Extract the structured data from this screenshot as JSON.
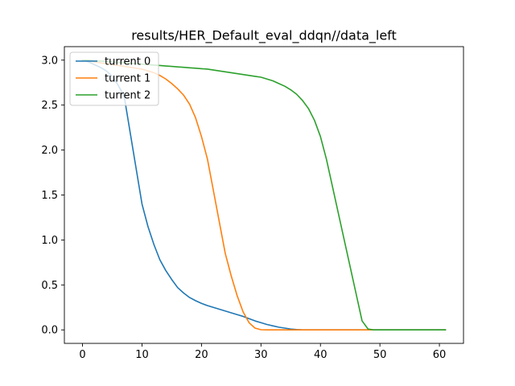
{
  "chart_data": {
    "type": "line",
    "title": "results/HER_Default_eval_ddqn//data_left",
    "xlim": [
      -3.05,
      64.05
    ],
    "ylim": [
      -0.15,
      3.15
    ],
    "x_ticks": [
      0,
      10,
      20,
      30,
      40,
      50,
      60
    ],
    "y_ticks": [
      0.0,
      0.5,
      1.0,
      1.5,
      2.0,
      2.5,
      3.0
    ],
    "y_tick_labels": [
      "0.0",
      "0.5",
      "1.0",
      "1.5",
      "2.0",
      "2.5",
      "3.0"
    ],
    "grid": false,
    "legend_position": "upper left",
    "series": [
      {
        "name": "turrent 0",
        "color": "#1f77b4",
        "x": [
          0,
          1,
          2,
          3,
          4,
          5,
          6,
          7,
          8,
          9,
          10,
          11,
          12,
          13,
          14,
          15,
          16,
          17,
          18,
          19,
          20,
          21,
          22,
          23,
          24,
          25,
          26,
          27,
          28,
          29,
          30,
          31,
          32,
          33,
          34,
          35,
          36,
          37,
          38,
          39,
          40,
          41,
          42,
          43,
          44,
          45,
          46,
          47,
          48,
          49,
          50,
          51,
          52,
          53,
          54,
          55,
          56,
          57,
          58,
          59,
          60,
          61
        ],
        "y": [
          3.0,
          2.98,
          2.95,
          2.92,
          2.88,
          2.82,
          2.72,
          2.6,
          2.2,
          1.8,
          1.4,
          1.15,
          0.95,
          0.78,
          0.66,
          0.56,
          0.47,
          0.41,
          0.36,
          0.325,
          0.295,
          0.27,
          0.25,
          0.23,
          0.21,
          0.19,
          0.17,
          0.15,
          0.125,
          0.1,
          0.08,
          0.06,
          0.045,
          0.03,
          0.02,
          0.01,
          0.004,
          0,
          0,
          0,
          0,
          0,
          0,
          0,
          0,
          0,
          0,
          0,
          0,
          0,
          0,
          0,
          0,
          0,
          0,
          0,
          0,
          0,
          0,
          0,
          0,
          0
        ]
      },
      {
        "name": "turrent 1",
        "color": "#ff7f0e",
        "x": [
          0,
          1,
          2,
          3,
          4,
          5,
          6,
          7,
          8,
          9,
          10,
          11,
          12,
          13,
          14,
          15,
          16,
          17,
          18,
          19,
          20,
          21,
          22,
          23,
          24,
          25,
          26,
          27,
          28,
          29,
          30,
          31,
          32,
          33,
          34,
          35,
          36,
          37,
          38,
          39,
          40,
          41,
          42,
          43,
          44,
          45,
          46,
          47,
          48,
          49,
          50,
          51,
          52,
          53,
          54,
          55,
          56,
          57,
          58,
          59,
          60,
          61
        ],
        "y": [
          3.0,
          2.99,
          2.98,
          2.97,
          2.96,
          2.95,
          2.94,
          2.93,
          2.92,
          2.91,
          2.9,
          2.88,
          2.86,
          2.83,
          2.79,
          2.74,
          2.68,
          2.61,
          2.51,
          2.36,
          2.15,
          1.9,
          1.55,
          1.2,
          0.85,
          0.6,
          0.38,
          0.2,
          0.08,
          0.02,
          0.002,
          0,
          0,
          0,
          0,
          0,
          0,
          0,
          0,
          0,
          0,
          0,
          0,
          0,
          0,
          0,
          0,
          0,
          0,
          0,
          0,
          0,
          0,
          0,
          0,
          0,
          0,
          0,
          0,
          0,
          0,
          0
        ]
      },
      {
        "name": "turrent 2",
        "color": "#2ca02c",
        "x": [
          0,
          1,
          2,
          3,
          4,
          5,
          6,
          7,
          8,
          9,
          10,
          11,
          12,
          13,
          14,
          15,
          16,
          17,
          18,
          19,
          20,
          21,
          22,
          23,
          24,
          25,
          26,
          27,
          28,
          29,
          30,
          31,
          32,
          33,
          34,
          35,
          36,
          37,
          38,
          39,
          40,
          41,
          42,
          43,
          44,
          45,
          46,
          47,
          48,
          49,
          50,
          51,
          52,
          53,
          54,
          55,
          56,
          57,
          58,
          59,
          60,
          61
        ],
        "y": [
          3.0,
          3.0,
          2.99,
          2.99,
          2.985,
          2.98,
          2.975,
          2.97,
          2.965,
          2.96,
          2.955,
          2.95,
          2.945,
          2.94,
          2.935,
          2.93,
          2.925,
          2.92,
          2.915,
          2.91,
          2.905,
          2.9,
          2.89,
          2.88,
          2.87,
          2.86,
          2.85,
          2.84,
          2.83,
          2.82,
          2.81,
          2.79,
          2.77,
          2.74,
          2.71,
          2.67,
          2.62,
          2.55,
          2.46,
          2.33,
          2.15,
          1.9,
          1.6,
          1.3,
          1.0,
          0.7,
          0.4,
          0.1,
          0.01,
          0,
          0,
          0,
          0,
          0,
          0,
          0,
          0,
          0,
          0,
          0,
          0,
          0
        ]
      }
    ]
  }
}
